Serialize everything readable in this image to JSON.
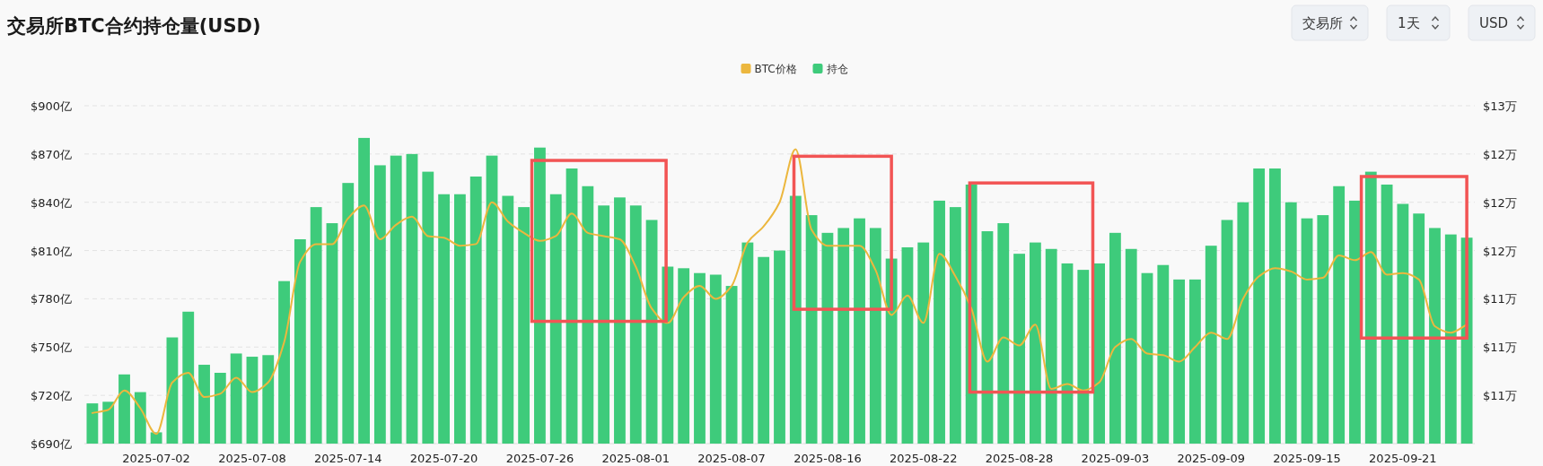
{
  "chart_data": {
    "type": "bar",
    "title": "交易所BTC合约持仓量(USD)",
    "categories": [
      null,
      null,
      null,
      null,
      "2025-07-02",
      null,
      null,
      null,
      null,
      null,
      "2025-07-08",
      null,
      null,
      null,
      null,
      null,
      "2025-07-14",
      null,
      null,
      null,
      null,
      null,
      "2025-07-20",
      null,
      null,
      null,
      null,
      null,
      "2025-07-26",
      null,
      null,
      null,
      null,
      null,
      "2025-08-01",
      null,
      null,
      null,
      null,
      null,
      "2025-08-07",
      null,
      null,
      null,
      null,
      null,
      "2025-08-16",
      null,
      null,
      null,
      null,
      null,
      "2025-08-22",
      null,
      null,
      null,
      null,
      null,
      "2025-08-28",
      null,
      null,
      null,
      null,
      null,
      "2025-09-03",
      null,
      null,
      null,
      null,
      null,
      "2025-09-09",
      null,
      null,
      null,
      null,
      null,
      "2025-09-15",
      null,
      null,
      null,
      null,
      null,
      "2025-09-21",
      null,
      null,
      null,
      null
    ],
    "series": [
      {
        "name": "BTC价格",
        "type": "line",
        "axis": "y2",
        "color": "#ecb73e",
        "values": [
          10.59,
          10.61,
          10.73,
          10.62,
          10.46,
          10.78,
          10.84,
          10.69,
          10.71,
          10.81,
          10.72,
          10.78,
          11.03,
          11.53,
          11.64,
          11.64,
          11.8,
          11.88,
          11.67,
          11.76,
          11.81,
          11.69,
          11.68,
          11.63,
          11.64,
          11.9,
          11.78,
          11.71,
          11.66,
          11.69,
          11.83,
          11.71,
          11.69,
          11.67,
          11.5,
          11.24,
          11.15,
          11.31,
          11.38,
          11.3,
          11.38,
          11.65,
          11.75,
          11.9,
          12.23,
          11.73,
          11.63,
          11.63,
          11.63,
          11.48,
          11.2,
          11.32,
          11.15,
          11.58,
          11.44,
          11.24,
          10.91,
          11.06,
          11.01,
          11.14,
          10.74,
          10.77,
          10.73,
          10.78,
          11.0,
          11.05,
          10.96,
          10.95,
          10.91,
          11.0,
          11.09,
          11.05,
          11.3,
          11.44,
          11.49,
          11.47,
          11.42,
          11.43,
          11.57,
          11.54,
          11.59,
          11.45,
          11.46,
          11.42,
          11.13,
          11.09,
          11.14
        ]
      },
      {
        "name": "持仓",
        "color": "#3ecb7b",
        "values": [
          715,
          716,
          733,
          722,
          697,
          756,
          772,
          739,
          734,
          746,
          744,
          745,
          791,
          817,
          837,
          827,
          852,
          880,
          863,
          869,
          870,
          859,
          845,
          845,
          856,
          869,
          844,
          837,
          874,
          845,
          861,
          850,
          838,
          843,
          838,
          829,
          800,
          799,
          796,
          795,
          788,
          815,
          806,
          810,
          844,
          832,
          821,
          824,
          830,
          824,
          805,
          812,
          815,
          841,
          837,
          851,
          822,
          827,
          808,
          815,
          811,
          802,
          798,
          802,
          821,
          811,
          796,
          801,
          792,
          792,
          813,
          829,
          840,
          861,
          861,
          840,
          830,
          832,
          850,
          841,
          859,
          851,
          839,
          833,
          824,
          820,
          818
        ]
      }
    ],
    "ylim": [
      690,
      900
    ],
    "yticks": [
      {
        "value": 690,
        "label": "$690亿"
      },
      {
        "value": 720,
        "label": "$720亿"
      },
      {
        "value": 750,
        "label": "$750亿"
      },
      {
        "value": 780,
        "label": "$780亿"
      },
      {
        "value": 810,
        "label": "$810亿"
      },
      {
        "value": 840,
        "label": "$840亿"
      },
      {
        "value": 870,
        "label": "$870亿"
      },
      {
        "value": 900,
        "label": "$900亿"
      }
    ],
    "y2lim": [
      10.4,
      12.5
    ],
    "y2ticks": [
      {
        "value": 10.7,
        "label": "$11万"
      },
      {
        "value": 11.0,
        "label": "$11万"
      },
      {
        "value": 11.3,
        "label": "$11万"
      },
      {
        "value": 11.6,
        "label": "$12万"
      },
      {
        "value": 11.9,
        "label": "$12万"
      },
      {
        "value": 12.2,
        "label": "$12万"
      },
      {
        "value": 12.5,
        "label": "$13万"
      }
    ],
    "grid": "y",
    "legend": "top",
    "marker": "none",
    "annotations": [
      "交易所",
      "1天",
      "USD"
    ]
  }
}
